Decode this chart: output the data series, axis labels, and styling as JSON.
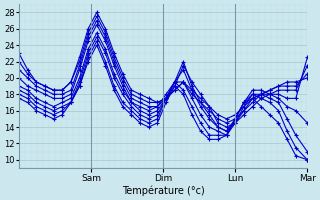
{
  "bg_color": "#cce8ee",
  "grid_color_major": "#aaccd4",
  "grid_color_minor": "#bcdde4",
  "line_color": "#0000cc",
  "marker": "+",
  "xlabel": "Température (°c)",
  "ylim": [
    9,
    29
  ],
  "yticks": [
    10,
    12,
    14,
    16,
    18,
    20,
    22,
    24,
    26,
    28
  ],
  "xtick_labels": [
    "Sam",
    "Dim",
    "Lun",
    "Mar"
  ],
  "xtick_positions": [
    0.25,
    0.5,
    0.75,
    1.0
  ],
  "lines": [
    {
      "x": [
        0.0,
        0.03,
        0.06,
        0.09,
        0.12,
        0.15,
        0.18,
        0.21,
        0.24,
        0.27,
        0.3,
        0.33,
        0.36,
        0.39,
        0.42,
        0.45,
        0.48,
        0.51,
        0.54,
        0.57,
        0.6,
        0.63,
        0.66,
        0.69,
        0.72,
        0.75,
        0.78,
        0.81,
        0.84,
        0.87,
        0.9,
        0.93,
        0.96,
        1.0
      ],
      "y": [
        23.0,
        21.0,
        19.5,
        19.0,
        18.5,
        18.5,
        19.5,
        22.5,
        26.0,
        28.0,
        26.0,
        23.0,
        20.5,
        18.5,
        18.0,
        17.5,
        17.0,
        17.5,
        18.5,
        19.5,
        18.0,
        17.0,
        16.0,
        15.0,
        14.5,
        15.0,
        16.0,
        17.0,
        18.0,
        18.5,
        19.0,
        19.5,
        19.5,
        20.0
      ]
    },
    {
      "x": [
        0.0,
        0.03,
        0.06,
        0.09,
        0.12,
        0.15,
        0.18,
        0.21,
        0.24,
        0.27,
        0.3,
        0.33,
        0.36,
        0.39,
        0.42,
        0.45,
        0.48,
        0.51,
        0.54,
        0.57,
        0.6,
        0.63,
        0.66,
        0.69,
        0.72,
        0.75,
        0.78,
        0.81,
        0.84,
        0.87,
        0.9,
        0.93,
        0.96,
        1.0
      ],
      "y": [
        22.0,
        20.5,
        19.5,
        19.0,
        18.5,
        18.5,
        19.5,
        22.0,
        25.5,
        27.5,
        25.5,
        22.5,
        20.0,
        18.0,
        17.5,
        17.0,
        17.0,
        17.5,
        18.5,
        19.5,
        18.5,
        17.5,
        16.5,
        15.5,
        15.0,
        15.5,
        16.5,
        17.5,
        18.0,
        18.5,
        19.0,
        19.0,
        19.0,
        20.5
      ]
    },
    {
      "x": [
        0.0,
        0.03,
        0.06,
        0.09,
        0.12,
        0.15,
        0.18,
        0.21,
        0.24,
        0.27,
        0.3,
        0.33,
        0.36,
        0.39,
        0.42,
        0.45,
        0.48,
        0.51,
        0.54,
        0.57,
        0.6,
        0.63,
        0.66,
        0.69,
        0.72,
        0.75,
        0.78,
        0.81,
        0.84,
        0.87,
        0.9,
        0.93,
        0.96,
        1.0
      ],
      "y": [
        21.0,
        20.0,
        19.0,
        18.5,
        18.0,
        18.0,
        18.5,
        21.5,
        25.0,
        27.0,
        25.0,
        22.0,
        19.5,
        17.5,
        17.0,
        16.5,
        16.5,
        17.5,
        19.0,
        21.5,
        19.5,
        18.0,
        16.5,
        14.5,
        14.0,
        14.5,
        15.5,
        16.5,
        17.5,
        18.0,
        18.5,
        18.5,
        18.5,
        21.5
      ]
    },
    {
      "x": [
        0.0,
        0.03,
        0.06,
        0.09,
        0.12,
        0.15,
        0.18,
        0.21,
        0.24,
        0.27,
        0.3,
        0.33,
        0.36,
        0.39,
        0.42,
        0.45,
        0.48,
        0.51,
        0.54,
        0.57,
        0.6,
        0.63,
        0.66,
        0.69,
        0.72,
        0.75,
        0.78,
        0.81,
        0.84,
        0.87,
        0.9,
        0.93,
        0.96,
        1.0
      ],
      "y": [
        20.0,
        19.0,
        18.5,
        18.0,
        17.5,
        17.5,
        18.0,
        21.0,
        24.5,
        26.5,
        24.5,
        21.5,
        19.0,
        17.0,
        16.5,
        16.0,
        16.5,
        18.0,
        19.5,
        22.0,
        19.0,
        17.0,
        15.5,
        14.0,
        13.5,
        14.5,
        16.0,
        17.5,
        18.0,
        18.0,
        18.0,
        17.5,
        17.5,
        22.5
      ]
    },
    {
      "x": [
        0.0,
        0.03,
        0.06,
        0.09,
        0.12,
        0.15,
        0.18,
        0.21,
        0.24,
        0.27,
        0.3,
        0.33,
        0.36,
        0.39,
        0.42,
        0.45,
        0.48,
        0.51,
        0.54,
        0.57,
        0.6,
        0.63,
        0.66,
        0.69,
        0.72,
        0.75,
        0.78,
        0.81,
        0.84,
        0.87,
        0.9,
        0.93,
        0.96,
        1.0
      ],
      "y": [
        19.0,
        18.5,
        17.5,
        17.0,
        16.5,
        17.0,
        17.5,
        20.0,
        23.5,
        25.5,
        23.5,
        20.5,
        18.5,
        17.0,
        16.0,
        15.5,
        16.0,
        17.5,
        19.5,
        21.0,
        18.5,
        16.5,
        15.0,
        14.0,
        13.5,
        15.0,
        17.0,
        18.5,
        18.5,
        18.0,
        17.5,
        16.5,
        16.0,
        14.5
      ]
    },
    {
      "x": [
        0.0,
        0.03,
        0.06,
        0.09,
        0.12,
        0.15,
        0.18,
        0.21,
        0.24,
        0.27,
        0.3,
        0.33,
        0.36,
        0.39,
        0.42,
        0.45,
        0.48,
        0.51,
        0.54,
        0.57,
        0.6,
        0.63,
        0.66,
        0.69,
        0.72,
        0.75,
        0.78,
        0.81,
        0.84,
        0.87,
        0.9,
        0.93,
        0.96,
        1.0
      ],
      "y": [
        18.5,
        18.0,
        17.0,
        16.5,
        16.0,
        16.5,
        17.0,
        19.5,
        23.0,
        25.0,
        23.0,
        20.0,
        18.0,
        16.5,
        15.5,
        15.0,
        15.5,
        17.5,
        19.5,
        19.5,
        17.5,
        15.5,
        14.0,
        13.5,
        13.0,
        14.5,
        16.5,
        18.0,
        18.0,
        17.5,
        17.0,
        15.0,
        13.0,
        11.0
      ]
    },
    {
      "x": [
        0.0,
        0.03,
        0.06,
        0.09,
        0.12,
        0.15,
        0.18,
        0.21,
        0.24,
        0.27,
        0.3,
        0.33,
        0.36,
        0.39,
        0.42,
        0.45,
        0.48,
        0.51,
        0.54,
        0.57,
        0.6,
        0.63,
        0.66,
        0.69,
        0.72,
        0.75,
        0.78,
        0.81,
        0.84,
        0.87,
        0.9,
        0.93,
        0.96,
        1.0
      ],
      "y": [
        18.0,
        17.5,
        16.5,
        16.0,
        15.5,
        16.0,
        17.0,
        19.0,
        22.5,
        24.5,
        22.0,
        19.0,
        17.0,
        16.0,
        15.0,
        14.5,
        15.0,
        17.5,
        19.5,
        18.5,
        16.5,
        14.5,
        13.0,
        13.0,
        13.0,
        15.0,
        17.0,
        18.0,
        17.5,
        17.0,
        16.0,
        13.5,
        11.5,
        10.0
      ]
    },
    {
      "x": [
        0.0,
        0.03,
        0.06,
        0.09,
        0.12,
        0.15,
        0.18,
        0.21,
        0.24,
        0.27,
        0.3,
        0.33,
        0.36,
        0.39,
        0.42,
        0.45,
        0.48,
        0.51,
        0.54,
        0.57,
        0.6,
        0.63,
        0.66,
        0.69,
        0.72,
        0.75,
        0.78,
        0.81,
        0.84,
        0.87,
        0.9,
        0.93,
        0.96,
        1.0
      ],
      "y": [
        17.5,
        17.0,
        16.0,
        15.5,
        15.0,
        15.5,
        17.0,
        19.0,
        22.0,
        24.0,
        21.5,
        18.5,
        16.5,
        15.5,
        14.5,
        14.0,
        14.5,
        17.0,
        19.0,
        18.0,
        15.5,
        13.5,
        12.5,
        12.5,
        13.0,
        15.0,
        17.0,
        17.5,
        16.5,
        15.5,
        14.5,
        12.5,
        10.5,
        10.0
      ]
    }
  ]
}
